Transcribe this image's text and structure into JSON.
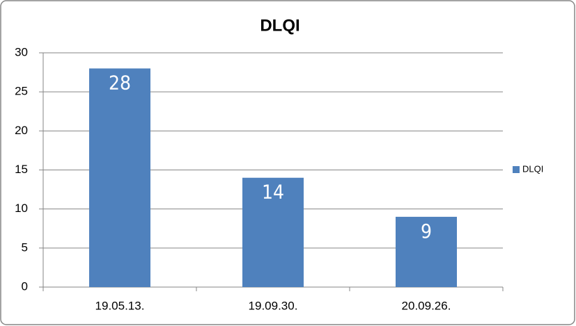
{
  "chart_data": {
    "type": "bar",
    "title": "DLQI",
    "categories": [
      "19.05.13.",
      "19.09.30.",
      "20.09.26."
    ],
    "series": [
      {
        "name": "DLQI",
        "color": "#4f81bd",
        "values": [
          28,
          14,
          9
        ]
      }
    ],
    "ylim": [
      0,
      30
    ],
    "yticks": [
      0,
      5,
      10,
      15,
      20,
      25,
      30
    ],
    "grid": true,
    "legend": "right"
  }
}
